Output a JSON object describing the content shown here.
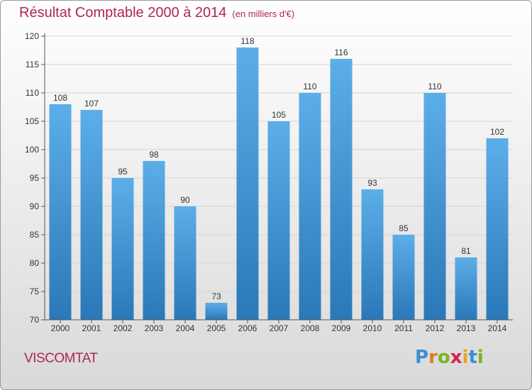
{
  "header": {
    "title": "Résultat Comptable 2000 à 2014",
    "subtitle": "(en milliers d'€)"
  },
  "footer": {
    "place": "VISCOMTAT",
    "logo_letters": [
      "P",
      "r",
      "o",
      "x",
      "i",
      "t",
      "i"
    ],
    "logo_colors": [
      "#3a8fd0",
      "#e07a1f",
      "#7ab51d",
      "#d8204a",
      "#f0a21f",
      "#3a8fd0",
      "#7ab51d"
    ]
  },
  "chart_data": {
    "type": "bar",
    "title": "Résultat Comptable 2000 à 2014",
    "subtitle": "(en milliers d'€)",
    "categories": [
      "2000",
      "2001",
      "2002",
      "2003",
      "2004",
      "2005",
      "2006",
      "2007",
      "2008",
      "2009",
      "2010",
      "2011",
      "2012",
      "2013",
      "2014"
    ],
    "values": [
      108,
      107,
      95,
      98,
      90,
      73,
      118,
      105,
      110,
      116,
      93,
      85,
      110,
      81,
      102
    ],
    "ylim": [
      70,
      120
    ],
    "yticks": [
      70,
      75,
      80,
      85,
      90,
      95,
      100,
      105,
      110,
      115,
      120
    ],
    "grid": true,
    "bar_color_top": "#5caee8",
    "bar_color_bottom": "#2a78b8",
    "text_color": "#333333"
  }
}
